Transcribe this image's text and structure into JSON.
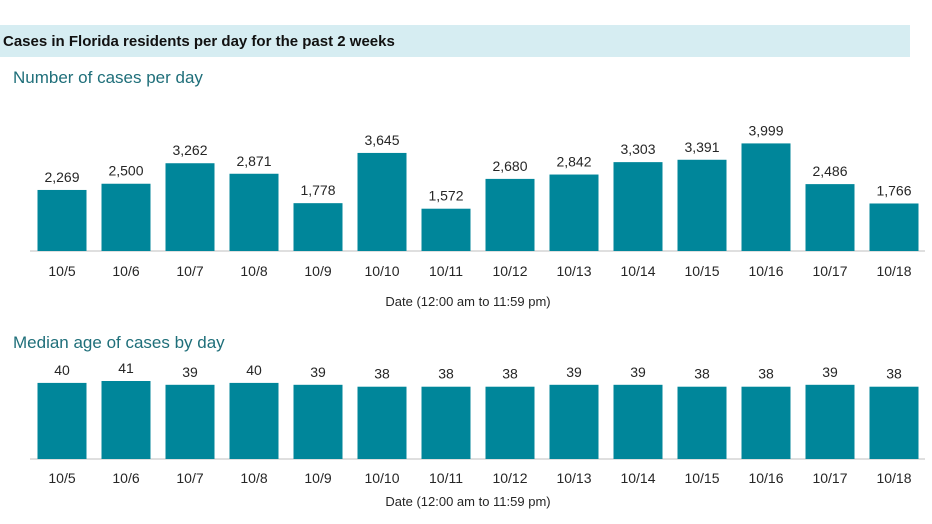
{
  "header": {
    "title": "Cases in Florida residents per day for the past 2 weeks"
  },
  "colors": {
    "bar": "#00869a",
    "header_band": "#d6edf2",
    "subtitle": "#1f6f7a"
  },
  "chart_data": [
    {
      "type": "bar",
      "title": "Number of cases per day",
      "xlabel": "Date (12:00 am to 11:59 pm)",
      "ylabel": "",
      "ylim": [
        0,
        4200
      ],
      "grid": false,
      "categories": [
        "10/5",
        "10/6",
        "10/7",
        "10/8",
        "10/9",
        "10/10",
        "10/11",
        "10/12",
        "10/13",
        "10/14",
        "10/15",
        "10/16",
        "10/17",
        "10/18"
      ],
      "values": [
        2269,
        2500,
        3262,
        2871,
        1778,
        3645,
        1572,
        2680,
        2842,
        3303,
        3391,
        3999,
        2486,
        1766
      ],
      "value_labels": [
        "2,269",
        "2,500",
        "3,262",
        "2,871",
        "1,778",
        "3,645",
        "1,572",
        "2,680",
        "2,842",
        "3,303",
        "3,391",
        "3,999",
        "2,486",
        "1,766"
      ]
    },
    {
      "type": "bar",
      "title": "Median age of cases by day",
      "xlabel": "Date (12:00 am to 11:59 pm)",
      "ylabel": "",
      "ylim": [
        0,
        41
      ],
      "grid": false,
      "categories": [
        "10/5",
        "10/6",
        "10/7",
        "10/8",
        "10/9",
        "10/10",
        "10/11",
        "10/12",
        "10/13",
        "10/14",
        "10/15",
        "10/16",
        "10/17",
        "10/18"
      ],
      "values": [
        40,
        41,
        39,
        40,
        39,
        38,
        38,
        38,
        39,
        39,
        38,
        38,
        39,
        38
      ],
      "value_labels": [
        "40",
        "41",
        "39",
        "40",
        "39",
        "38",
        "38",
        "38",
        "39",
        "39",
        "38",
        "38",
        "39",
        "38"
      ]
    }
  ]
}
